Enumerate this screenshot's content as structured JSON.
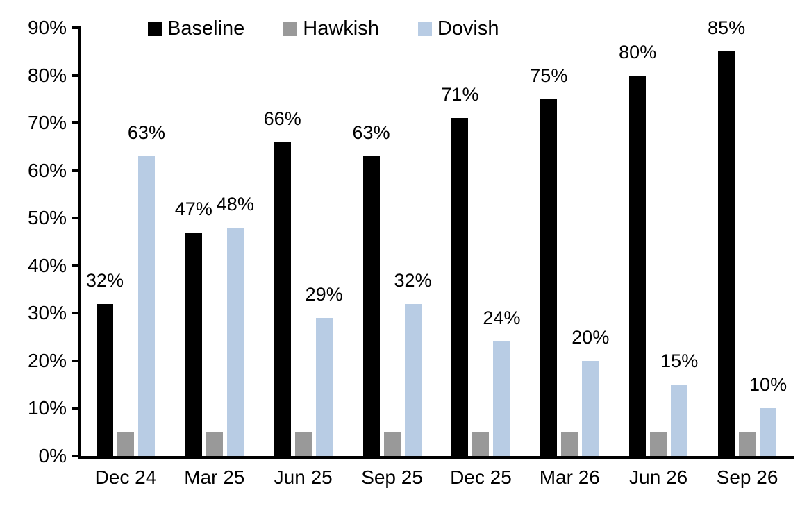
{
  "chart_data": {
    "type": "bar",
    "title": "",
    "xlabel": "",
    "ylabel": "",
    "grid": false,
    "legend_position": "top",
    "ylim": [
      0,
      90
    ],
    "yticks": [
      0,
      10,
      20,
      30,
      40,
      50,
      60,
      70,
      80,
      90
    ],
    "ytick_labels": [
      "0%",
      "10%",
      "20%",
      "30%",
      "40%",
      "50%",
      "60%",
      "70%",
      "80%",
      "90%"
    ],
    "categories": [
      "Dec 24",
      "Mar 25",
      "Jun 25",
      "Sep 25",
      "Dec 25",
      "Mar 26",
      "Jun 26",
      "Sep 26"
    ],
    "series": [
      {
        "name": "Baseline",
        "color": "#000000",
        "values": [
          32,
          47,
          66,
          63,
          71,
          75,
          80,
          85
        ],
        "data_labels": [
          "32%",
          "47%",
          "66%",
          "63%",
          "71%",
          "75%",
          "80%",
          "85%"
        ]
      },
      {
        "name": "Hawkish",
        "color": "#999999",
        "values": [
          5,
          5,
          5,
          5,
          5,
          5,
          5,
          5
        ],
        "data_labels": [
          "",
          "",
          "",
          "",
          "",
          "",
          "",
          ""
        ]
      },
      {
        "name": "Dovish",
        "color": "#B8CCE4",
        "values": [
          63,
          48,
          29,
          32,
          24,
          20,
          15,
          10
        ],
        "data_labels": [
          "63%",
          "48%",
          "29%",
          "32%",
          "24%",
          "20%",
          "15%",
          "10%"
        ]
      }
    ]
  }
}
